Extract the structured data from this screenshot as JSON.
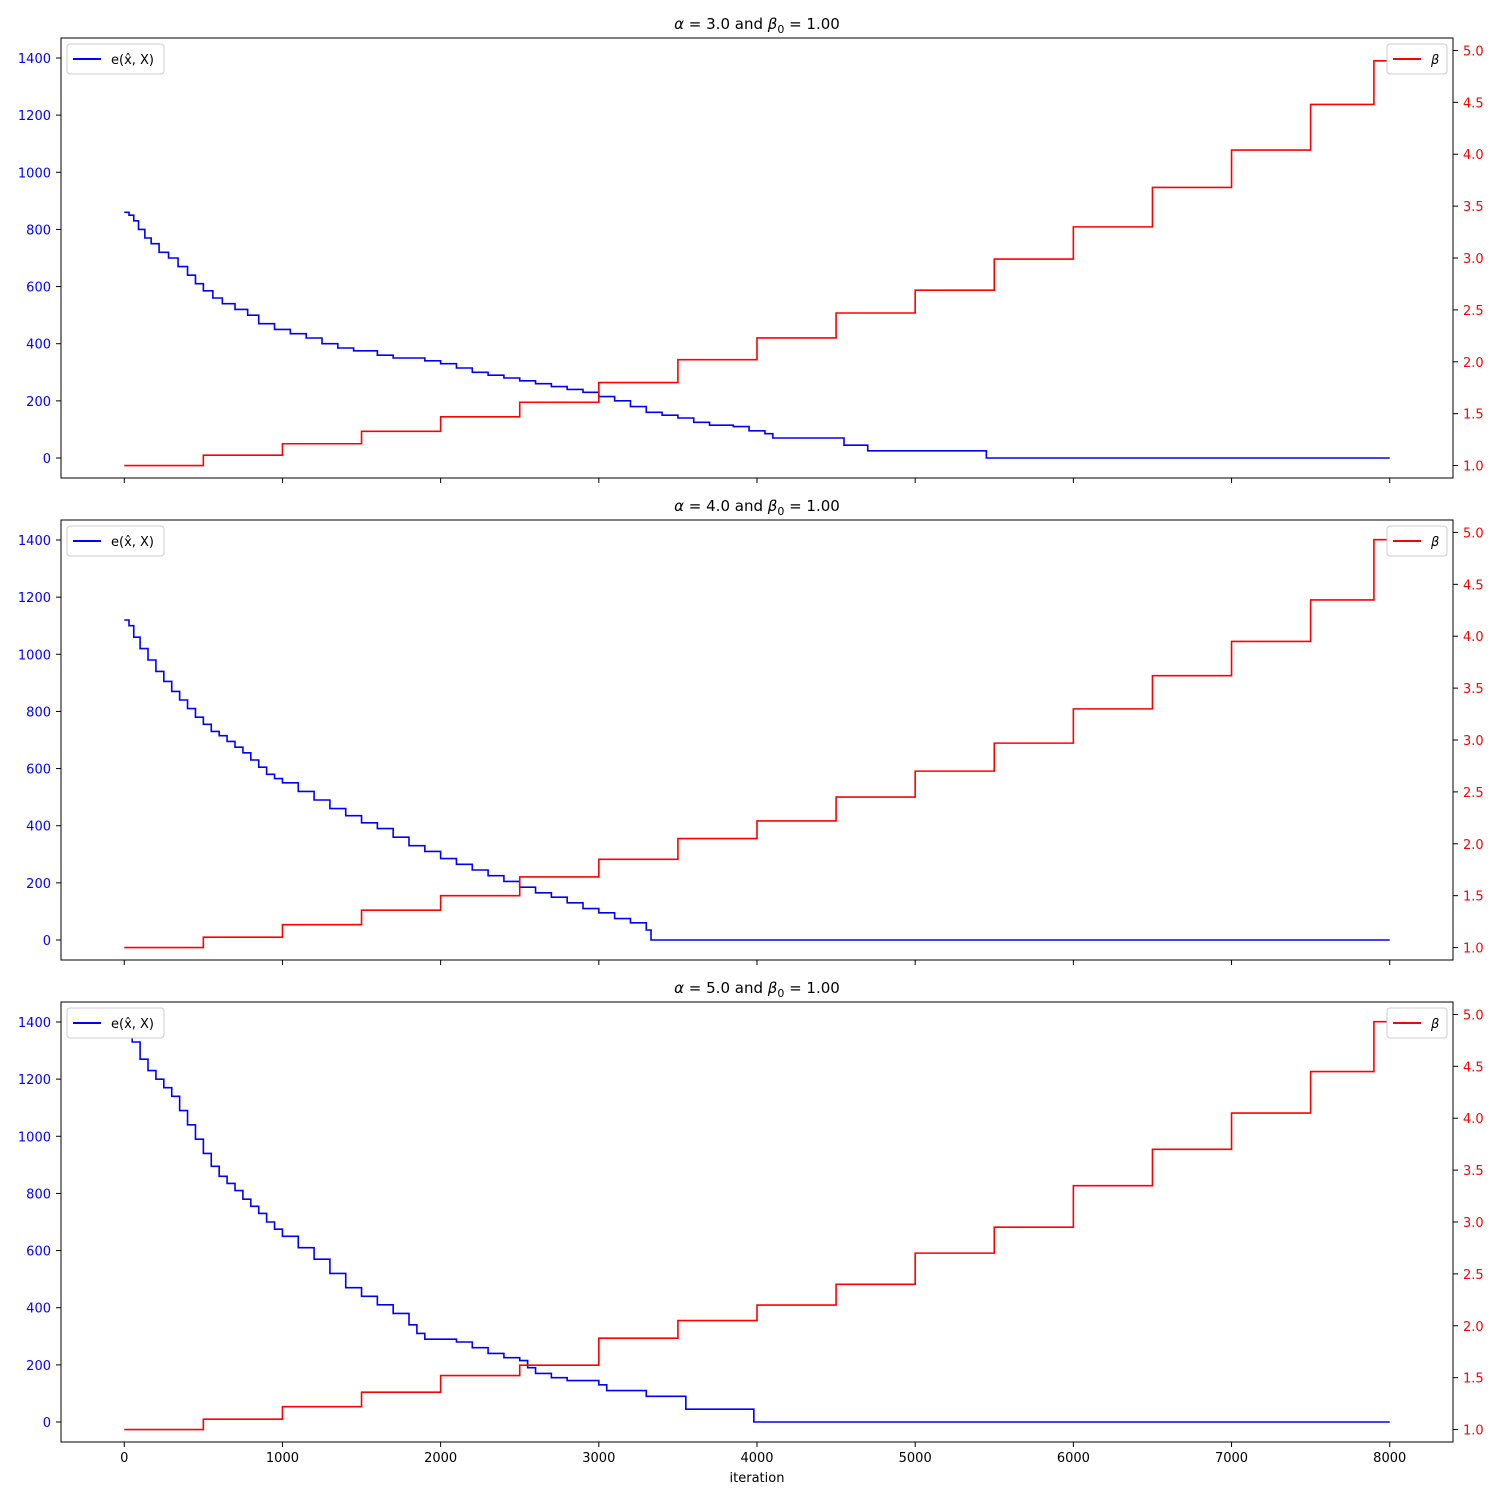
{
  "chart_data": [
    {
      "type": "line",
      "title": "α = 3.0 and β₀ = 1.00",
      "title_parts": {
        "alpha_symbol": "α",
        "alpha_text": " = 3.0 and ",
        "beta_symbol": "β",
        "beta_sub": "0",
        "beta_text": " = 1.00"
      },
      "xlim": [
        -400,
        8400
      ],
      "ylim": [
        -70,
        1470
      ],
      "y2lim": [
        0.88,
        5.12
      ],
      "xticks": [
        0,
        1000,
        2000,
        3000,
        4000,
        5000,
        6000,
        7000,
        8000
      ],
      "yticks": [
        0,
        200,
        400,
        600,
        800,
        1000,
        1200,
        1400
      ],
      "y2ticks": [
        "1.0",
        "1.5",
        "2.0",
        "2.5",
        "3.0",
        "3.5",
        "4.0",
        "4.5",
        "5.0"
      ],
      "legend_left": {
        "label": "e(x̂, X)",
        "color": "#0000ff",
        "placement": "upper-left"
      },
      "legend_right": {
        "label": "β",
        "color": "#ff0000",
        "placement": "upper-right"
      },
      "series": [
        {
          "name": "e(x̂, X)",
          "axis": "left",
          "color": "#0000ff",
          "step": true,
          "x": [
            0,
            30,
            60,
            90,
            130,
            170,
            220,
            280,
            340,
            400,
            450,
            500,
            560,
            620,
            700,
            780,
            850,
            950,
            1050,
            1150,
            1250,
            1350,
            1450,
            1600,
            1700,
            1800,
            1900,
            2000,
            2100,
            2200,
            2300,
            2400,
            2500,
            2600,
            2700,
            2800,
            2900,
            3000,
            3100,
            3200,
            3300,
            3400,
            3500,
            3600,
            3700,
            3850,
            3950,
            4050,
            4100,
            4550,
            4700,
            5450,
            8000
          ],
          "y": [
            860,
            850,
            830,
            800,
            770,
            750,
            720,
            700,
            670,
            640,
            610,
            585,
            560,
            540,
            520,
            500,
            470,
            450,
            435,
            420,
            400,
            385,
            375,
            360,
            350,
            350,
            340,
            330,
            315,
            300,
            290,
            280,
            270,
            260,
            250,
            240,
            230,
            215,
            200,
            180,
            160,
            150,
            140,
            125,
            115,
            110,
            95,
            85,
            70,
            45,
            25,
            0,
            0
          ]
        },
        {
          "name": "β",
          "axis": "right",
          "color": "#ff0000",
          "step": true,
          "x": [
            0,
            500,
            1000,
            1500,
            2000,
            2500,
            3000,
            3500,
            4000,
            4500,
            5000,
            5500,
            6000,
            6500,
            7000,
            7500,
            7900,
            8000
          ],
          "y": [
            1.0,
            1.1,
            1.21,
            1.33,
            1.47,
            1.61,
            1.8,
            2.02,
            2.23,
            2.47,
            2.69,
            2.99,
            3.3,
            3.68,
            4.04,
            4.48,
            4.9,
            4.92
          ]
        }
      ]
    },
    {
      "type": "line",
      "title": "α = 4.0 and β₀ = 1.00",
      "title_parts": {
        "alpha_symbol": "α",
        "alpha_text": " = 4.0 and ",
        "beta_symbol": "β",
        "beta_sub": "0",
        "beta_text": " = 1.00"
      },
      "xlim": [
        -400,
        8400
      ],
      "ylim": [
        -70,
        1470
      ],
      "y2lim": [
        0.88,
        5.12
      ],
      "xticks": [
        0,
        1000,
        2000,
        3000,
        4000,
        5000,
        6000,
        7000,
        8000
      ],
      "yticks": [
        0,
        200,
        400,
        600,
        800,
        1000,
        1200,
        1400
      ],
      "y2ticks": [
        "1.0",
        "1.5",
        "2.0",
        "2.5",
        "3.0",
        "3.5",
        "4.0",
        "4.5",
        "5.0"
      ],
      "legend_left": {
        "label": "e(x̂, X)",
        "color": "#0000ff",
        "placement": "upper-left"
      },
      "legend_right": {
        "label": "β",
        "color": "#ff0000",
        "placement": "upper-right"
      },
      "series": [
        {
          "name": "e(x̂, X)",
          "axis": "left",
          "color": "#0000ff",
          "step": true,
          "x": [
            0,
            30,
            60,
            100,
            150,
            200,
            250,
            300,
            350,
            400,
            450,
            500,
            550,
            600,
            650,
            700,
            750,
            800,
            850,
            900,
            950,
            1000,
            1100,
            1200,
            1300,
            1400,
            1500,
            1600,
            1700,
            1800,
            1900,
            2000,
            2100,
            2200,
            2300,
            2400,
            2500,
            2600,
            2700,
            2800,
            2900,
            3000,
            3100,
            3200,
            3300,
            3330,
            8000
          ],
          "y": [
            1120,
            1100,
            1060,
            1020,
            980,
            940,
            905,
            870,
            840,
            810,
            780,
            755,
            730,
            715,
            695,
            675,
            655,
            630,
            605,
            580,
            565,
            550,
            520,
            490,
            460,
            435,
            410,
            390,
            360,
            330,
            310,
            285,
            265,
            245,
            225,
            205,
            185,
            165,
            150,
            130,
            110,
            95,
            75,
            60,
            35,
            0,
            0
          ]
        },
        {
          "name": "β",
          "axis": "right",
          "color": "#ff0000",
          "step": true,
          "x": [
            0,
            500,
            1000,
            1500,
            2000,
            2500,
            3000,
            3500,
            4000,
            4500,
            5000,
            5500,
            6000,
            6500,
            7000,
            7500,
            7900,
            8000
          ],
          "y": [
            1.0,
            1.1,
            1.22,
            1.36,
            1.5,
            1.68,
            1.85,
            2.05,
            2.22,
            2.45,
            2.7,
            2.97,
            3.3,
            3.62,
            3.95,
            4.35,
            4.93,
            4.94
          ]
        }
      ]
    },
    {
      "type": "line",
      "title": "α = 5.0 and β₀ = 1.00",
      "title_parts": {
        "alpha_symbol": "α",
        "alpha_text": " = 5.0 and ",
        "beta_symbol": "β",
        "beta_sub": "0",
        "beta_text": " = 1.00"
      },
      "xlabel": "iteration",
      "xlim": [
        -400,
        8400
      ],
      "ylim": [
        -70,
        1470
      ],
      "y2lim": [
        0.88,
        5.12
      ],
      "xticks": [
        0,
        1000,
        2000,
        3000,
        4000,
        5000,
        6000,
        7000,
        8000
      ],
      "yticks": [
        0,
        200,
        400,
        600,
        800,
        1000,
        1200,
        1400
      ],
      "y2ticks": [
        "1.0",
        "1.5",
        "2.0",
        "2.5",
        "3.0",
        "3.5",
        "4.0",
        "4.5",
        "5.0"
      ],
      "legend_left": {
        "label": "e(x̂, X)",
        "color": "#0000ff",
        "placement": "upper-left"
      },
      "legend_right": {
        "label": "β",
        "color": "#ff0000",
        "placement": "upper-right"
      },
      "series": [
        {
          "name": "e(x̂, X)",
          "axis": "left",
          "color": "#0000ff",
          "step": true,
          "x": [
            0,
            50,
            100,
            150,
            200,
            250,
            300,
            350,
            400,
            450,
            500,
            550,
            600,
            650,
            700,
            750,
            800,
            850,
            900,
            950,
            1000,
            1100,
            1200,
            1300,
            1400,
            1500,
            1600,
            1700,
            1800,
            1850,
            1900,
            2100,
            2200,
            2300,
            2400,
            2500,
            2550,
            2600,
            2700,
            2800,
            3000,
            3050,
            3200,
            3300,
            3500,
            3550,
            3950,
            3980,
            8000
          ],
          "y": [
            1400,
            1330,
            1270,
            1230,
            1200,
            1170,
            1140,
            1090,
            1040,
            990,
            940,
            895,
            860,
            835,
            810,
            780,
            755,
            730,
            700,
            675,
            650,
            610,
            570,
            520,
            470,
            440,
            410,
            380,
            340,
            310,
            290,
            280,
            260,
            240,
            225,
            215,
            190,
            170,
            155,
            145,
            130,
            110,
            110,
            90,
            90,
            45,
            45,
            0,
            0
          ]
        },
        {
          "name": "β",
          "axis": "right",
          "color": "#ff0000",
          "step": true,
          "x": [
            0,
            500,
            1000,
            1500,
            2000,
            2500,
            3000,
            3500,
            4000,
            4500,
            5000,
            5500,
            6000,
            6500,
            7000,
            7500,
            7900,
            8000
          ],
          "y": [
            1.0,
            1.1,
            1.22,
            1.36,
            1.52,
            1.62,
            1.88,
            2.05,
            2.2,
            2.4,
            2.7,
            2.95,
            3.35,
            3.7,
            4.05,
            4.45,
            4.93,
            4.95
          ]
        }
      ]
    }
  ]
}
